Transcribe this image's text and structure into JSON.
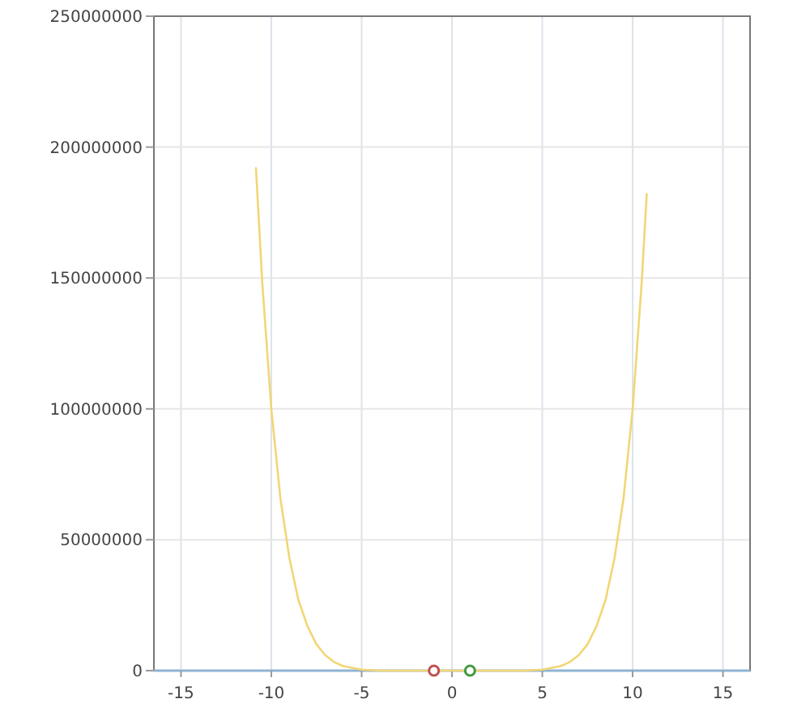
{
  "chart_data": {
    "type": "line",
    "xlim": [
      -16.5,
      16.5
    ],
    "xticks": [
      -15,
      -10,
      -5,
      0,
      5,
      10,
      15
    ],
    "ylim": [
      0,
      250000000
    ],
    "yticks": [
      0,
      50000000,
      100000000,
      150000000,
      200000000,
      250000000
    ],
    "grid": true,
    "marker": "none",
    "series": [
      {
        "color": "#f2d675",
        "x": [
          -10.85,
          -10.5,
          -10,
          -9.5,
          -9,
          -8.5,
          -8,
          -7.5,
          -7,
          -6.5,
          -6,
          -5,
          -4,
          -2,
          0,
          2,
          4,
          5,
          6,
          6.5,
          7,
          7.5,
          8,
          8.5,
          9,
          9.5,
          10,
          10.5,
          10.78
        ],
        "values": [
          192000000,
          148000000,
          100000000,
          66000000,
          43000000,
          27000000,
          17000000,
          10000000,
          5800000,
          3200000,
          1700000,
          400000,
          0,
          0,
          0,
          0,
          0,
          400000,
          1700000,
          3200000,
          5800000,
          10000000,
          17000000,
          27000000,
          43000000,
          66000000,
          100000000,
          148000000,
          182000000
        ]
      },
      {
        "type": "scatter",
        "marker": "circle",
        "color": "#c0504d",
        "x": [
          -1
        ],
        "values": [
          0
        ]
      },
      {
        "type": "scatter",
        "marker": "circle",
        "color": "#3f9a3f",
        "x": [
          1
        ],
        "values": [
          0
        ]
      }
    ]
  }
}
